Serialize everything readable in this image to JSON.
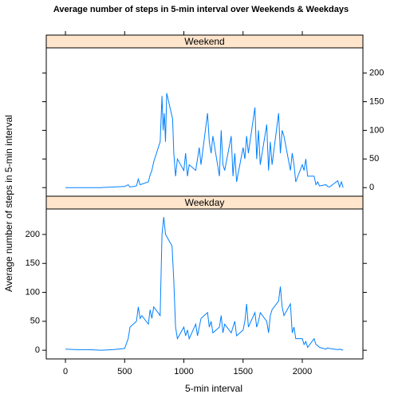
{
  "figure": {
    "title": "Average number of steps in 5-min interval over Weekends & Weekdays",
    "xlabel": "5-min interval",
    "ylabel": "Average number of steps in 5-min interval"
  },
  "chart_data": [
    {
      "type": "line",
      "title": "Weekend",
      "color": "#0080ff",
      "x": [
        0,
        100,
        200,
        300,
        400,
        500,
        530,
        545,
        600,
        615,
        630,
        700,
        715,
        730,
        745,
        800,
        815,
        825,
        835,
        845,
        855,
        905,
        915,
        930,
        945,
        1000,
        1015,
        1030,
        1045,
        1100,
        1115,
        1130,
        1145,
        1200,
        1215,
        1230,
        1245,
        1300,
        1315,
        1330,
        1345,
        1400,
        1415,
        1430,
        1445,
        1500,
        1515,
        1530,
        1545,
        1600,
        1615,
        1630,
        1645,
        1700,
        1715,
        1730,
        1745,
        1800,
        1815,
        1830,
        1845,
        1900,
        1915,
        1930,
        1945,
        2000,
        2015,
        2030,
        2045,
        2100,
        2115,
        2130,
        2145,
        2200,
        2215,
        2230,
        2300,
        2315,
        2330,
        2345
      ],
      "values": [
        0,
        0,
        0,
        0,
        1,
        2,
        5,
        1,
        3,
        15,
        5,
        10,
        22,
        30,
        45,
        80,
        160,
        100,
        130,
        80,
        165,
        120,
        60,
        20,
        50,
        30,
        60,
        20,
        40,
        30,
        50,
        70,
        40,
        130,
        80,
        60,
        90,
        20,
        100,
        40,
        30,
        90,
        20,
        60,
        10,
        70,
        50,
        90,
        60,
        140,
        50,
        100,
        40,
        110,
        30,
        80,
        40,
        130,
        60,
        100,
        90,
        30,
        60,
        40,
        10,
        40,
        30,
        50,
        20,
        20,
        5,
        10,
        3,
        5,
        2,
        1,
        12,
        1,
        10,
        0
      ],
      "xlim": [
        -162,
        2512
      ],
      "ylim": [
        -15,
        244
      ],
      "xticks": [
        0,
        500,
        1000,
        1500,
        2000
      ],
      "yticks": [
        0,
        50,
        100,
        150,
        200
      ]
    },
    {
      "type": "line",
      "title": "Weekday",
      "color": "#0080ff",
      "x": [
        0,
        100,
        200,
        300,
        400,
        500,
        530,
        545,
        600,
        615,
        630,
        645,
        700,
        715,
        730,
        745,
        800,
        815,
        830,
        845,
        900,
        915,
        930,
        945,
        1000,
        1015,
        1030,
        1045,
        1100,
        1115,
        1130,
        1145,
        1200,
        1215,
        1230,
        1245,
        1300,
        1315,
        1330,
        1345,
        1400,
        1415,
        1430,
        1445,
        1500,
        1515,
        1530,
        1545,
        1600,
        1615,
        1630,
        1645,
        1700,
        1715,
        1730,
        1745,
        1800,
        1815,
        1830,
        1845,
        1900,
        1915,
        1930,
        1945,
        2000,
        2015,
        2030,
        2045,
        2100,
        2115,
        2130,
        2145,
        2200,
        2215,
        2230,
        2300,
        2315,
        2330,
        2345
      ],
      "values": [
        2,
        1,
        1,
        0,
        1,
        3,
        20,
        40,
        50,
        75,
        55,
        60,
        45,
        70,
        55,
        75,
        60,
        200,
        230,
        200,
        180,
        120,
        40,
        20,
        40,
        25,
        35,
        20,
        45,
        25,
        40,
        55,
        65,
        40,
        50,
        30,
        40,
        60,
        30,
        45,
        30,
        40,
        50,
        25,
        35,
        50,
        80,
        40,
        65,
        40,
        50,
        65,
        50,
        30,
        60,
        70,
        85,
        110,
        75,
        60,
        80,
        30,
        40,
        20,
        20,
        10,
        15,
        5,
        20,
        10,
        8,
        5,
        2,
        4,
        3,
        1,
        2,
        1,
        0
      ],
      "xlim": [
        -162,
        2512
      ],
      "ylim": [
        -15,
        244
      ],
      "xticks": [
        0,
        500,
        1000,
        1500,
        2000
      ],
      "yticks": [
        0,
        50,
        100,
        150,
        200
      ]
    }
  ]
}
